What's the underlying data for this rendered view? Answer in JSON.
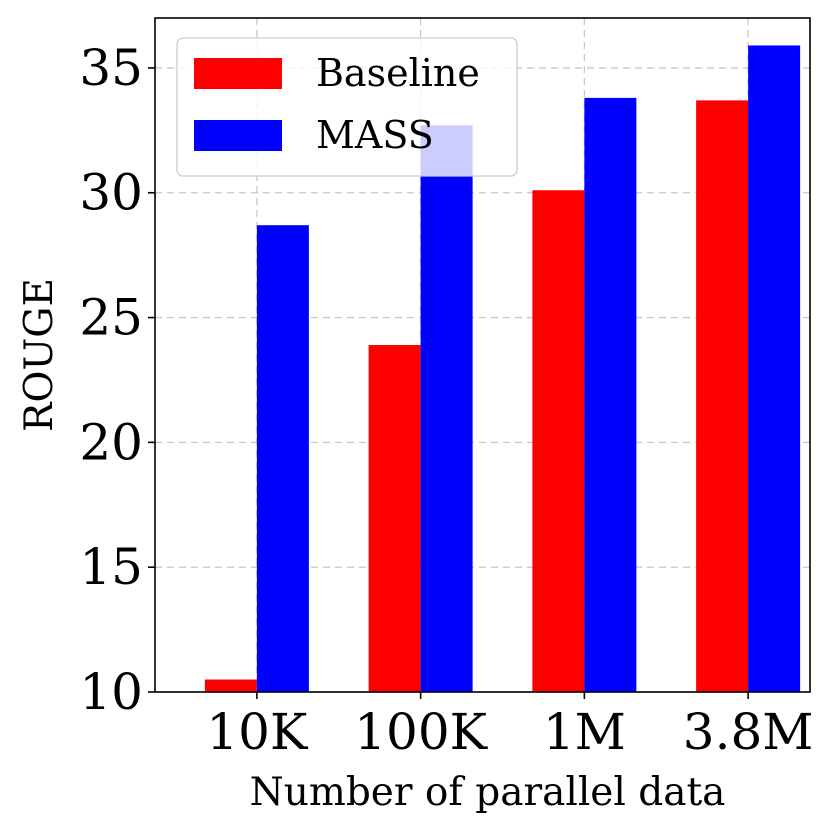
{
  "chart_data": {
    "type": "bar",
    "title": "",
    "xlabel": "Number of parallel data",
    "ylabel": "ROUGE",
    "categories": [
      "10K",
      "100K",
      "1M",
      "3.8M"
    ],
    "series": [
      {
        "name": "Baseline",
        "color": "#ff0000",
        "values": [
          10.5,
          23.9,
          30.1,
          33.7
        ]
      },
      {
        "name": "MASS",
        "color": "#0000ff",
        "values": [
          28.7,
          32.7,
          33.8,
          35.9
        ]
      }
    ],
    "ylim": [
      10,
      37
    ],
    "yticks": [
      10,
      15,
      20,
      25,
      30,
      35
    ],
    "ytick_labels": [
      "10",
      "15",
      "20",
      "25",
      "30",
      "35"
    ],
    "grid": true,
    "legend_position": "top-left"
  }
}
